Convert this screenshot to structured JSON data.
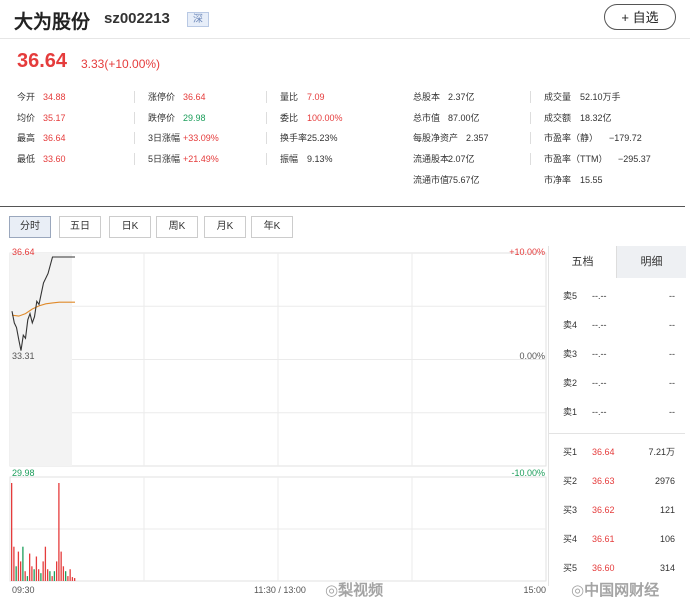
{
  "header": {
    "name": "大为股份",
    "code": "sz002213",
    "market": "深",
    "add_button": "+ 自选"
  },
  "quote": {
    "price": "36.64",
    "change": "3.33(+10.00%)"
  },
  "stats": [
    [
      {
        "label": "今开",
        "value": "34.88",
        "color": "red"
      },
      {
        "label": "均价",
        "value": "35.17",
        "color": "red"
      },
      {
        "label": "最高",
        "value": "36.64",
        "color": "red"
      },
      {
        "label": "最低",
        "value": "33.60",
        "color": "red"
      }
    ],
    [
      {
        "label": "涨停价",
        "value": "36.64",
        "color": "red"
      },
      {
        "label": "跌停价",
        "value": "29.98",
        "color": "green"
      },
      {
        "label": "3日涨幅",
        "value": "+33.09%",
        "color": "red"
      },
      {
        "label": "5日涨幅",
        "value": "+21.49%",
        "color": "red"
      }
    ],
    [
      {
        "label": "量比",
        "value": "7.09",
        "color": "red"
      },
      {
        "label": "委比",
        "value": "100.00%",
        "color": "red"
      },
      {
        "label": "换手率",
        "value": "25.23%",
        "color": "plain"
      },
      {
        "label": "振幅",
        "value": "9.13%",
        "color": "plain"
      }
    ],
    [
      {
        "label": "总股本",
        "value": "2.37亿",
        "color": "plain"
      },
      {
        "label": "总市值",
        "value": "87.00亿",
        "color": "plain"
      },
      {
        "label": "每股净资产",
        "value": "2.357",
        "color": "plain"
      },
      {
        "label": "流通股本",
        "value": "2.07亿",
        "color": "plain"
      },
      {
        "label": "流通市值",
        "value": "75.67亿",
        "color": "plain"
      }
    ],
    [
      {
        "label": "成交量",
        "value": "52.10万手",
        "color": "plain"
      },
      {
        "label": "成交额",
        "value": "18.32亿",
        "color": "plain"
      },
      {
        "label": "市盈率（静）",
        "value": "−179.72",
        "color": "plain"
      },
      {
        "label": "市盈率（TTM）",
        "value": "−295.37",
        "color": "plain"
      },
      {
        "label": "市净率",
        "value": "15.55",
        "color": "plain"
      }
    ]
  ],
  "tabs": [
    "分时",
    "五日",
    "日K",
    "周K",
    "月K",
    "年K"
  ],
  "active_tab": 0,
  "chart_data": {
    "type": "line",
    "ylim": [
      33.31,
      36.64
    ],
    "y_ticks_left": [
      "36.64",
      "33.31"
    ],
    "y_ticks_right": [
      "+10.00%",
      "0.00%",
      "-10.00%"
    ],
    "volume_label": "29.98",
    "x_ticks": [
      "09:30",
      "11:30 / 13:00",
      "15:00"
    ],
    "price": {
      "x": [
        0,
        1,
        2,
        3,
        4,
        5,
        6,
        7,
        8,
        9,
        10,
        11,
        12,
        14,
        16,
        18,
        20,
        22,
        24,
        26,
        28
      ],
      "y": [
        34.88,
        34.5,
        34.35,
        33.95,
        33.6,
        34.1,
        34.0,
        34.6,
        34.8,
        34.5,
        34.7,
        35.2,
        35.1,
        35.8,
        36.1,
        36.64,
        36.64,
        36.64,
        36.64,
        36.64,
        36.64
      ]
    },
    "average": {
      "x": [
        0,
        3,
        6,
        9,
        12,
        15,
        18,
        21,
        24,
        28
      ],
      "y": [
        34.75,
        34.72,
        34.8,
        34.95,
        35.05,
        35.12,
        35.15,
        35.17,
        35.17,
        35.17
      ]
    },
    "volume": [
      1.0,
      0.35,
      0.15,
      0.3,
      0.2,
      0.35,
      0.1,
      0.05,
      0.28,
      0.15,
      0.12,
      0.25,
      0.12,
      0.08,
      0.2,
      0.35,
      0.12,
      0.1,
      0.05,
      0.1,
      0.2,
      1.0,
      0.3,
      0.15,
      0.1,
      0.05,
      0.12,
      0.04,
      0.03
    ],
    "volume_colors": [
      "red",
      "red",
      "green",
      "red",
      "red",
      "green",
      "red",
      "green",
      "red",
      "red",
      "green",
      "red",
      "red",
      "green",
      "red",
      "red",
      "red",
      "green",
      "red",
      "green",
      "red",
      "red",
      "red",
      "red",
      "green",
      "red",
      "red",
      "red",
      "red"
    ]
  },
  "order_book": {
    "tabs": [
      "五档",
      "明细"
    ],
    "asks": [
      {
        "label": "卖5",
        "price": "--.--",
        "vol": "--"
      },
      {
        "label": "卖4",
        "price": "--.--",
        "vol": "--"
      },
      {
        "label": "卖3",
        "price": "--.--",
        "vol": "--"
      },
      {
        "label": "卖2",
        "price": "--.--",
        "vol": "--"
      },
      {
        "label": "卖1",
        "price": "--.--",
        "vol": "--"
      }
    ],
    "bids": [
      {
        "label": "买1",
        "price": "36.64",
        "vol": "7.21万"
      },
      {
        "label": "买2",
        "price": "36.63",
        "vol": "2976"
      },
      {
        "label": "买3",
        "price": "36.62",
        "vol": "121"
      },
      {
        "label": "买4",
        "price": "36.61",
        "vol": "106"
      },
      {
        "label": "买5",
        "price": "36.60",
        "vol": "314"
      }
    ]
  },
  "watermarks": [
    "梨视频",
    "中国网财经"
  ],
  "colors": {
    "up": "#e53c3c",
    "down": "#1c9e5b",
    "price_line": "#333333",
    "avg_line": "#e08a2a"
  }
}
